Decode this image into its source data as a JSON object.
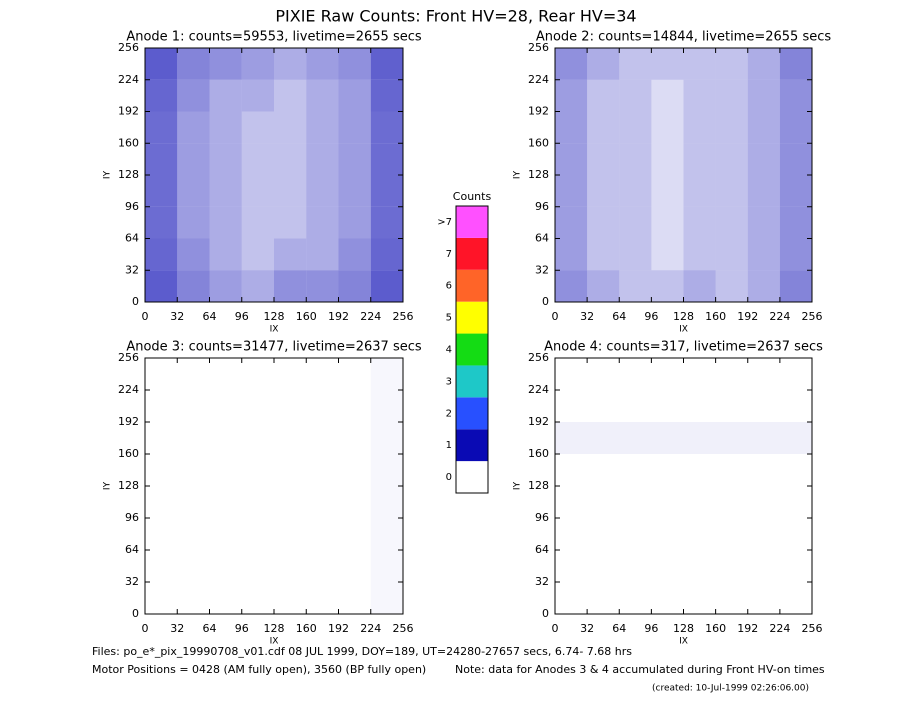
{
  "title": "PIXIE Raw Counts:  Front HV=28, Rear HV=34",
  "chart_data": [
    {
      "type": "heatmap",
      "title": "Anode 1: counts=59553, livetime=2655 secs",
      "xlabel": "IX",
      "ylabel": "IY",
      "xlim": [
        0,
        256
      ],
      "ylim": [
        0,
        256
      ],
      "xticks": [
        0,
        32,
        64,
        96,
        128,
        160,
        192,
        224,
        256
      ],
      "yticks": [
        0,
        32,
        64,
        96,
        128,
        160,
        192,
        224,
        256
      ],
      "xbins": [
        0,
        32,
        64,
        96,
        128,
        160,
        192,
        224,
        256
      ],
      "ybins": [
        0,
        32,
        64,
        96,
        128,
        160,
        192,
        224,
        256
      ],
      "values": [
        [
          1.2,
          0.6,
          0.4,
          0.3,
          0.5,
          0.5,
          0.6,
          1.2
        ],
        [
          1.0,
          0.5,
          0.3,
          0.2,
          0.3,
          0.3,
          0.5,
          1.0
        ],
        [
          0.9,
          0.4,
          0.3,
          0.2,
          0.2,
          0.3,
          0.4,
          0.9
        ],
        [
          0.9,
          0.4,
          0.3,
          0.2,
          0.2,
          0.3,
          0.4,
          0.9
        ],
        [
          0.9,
          0.4,
          0.3,
          0.2,
          0.2,
          0.3,
          0.4,
          0.9
        ],
        [
          0.9,
          0.4,
          0.3,
          0.2,
          0.2,
          0.3,
          0.4,
          0.9
        ],
        [
          1.0,
          0.5,
          0.3,
          0.3,
          0.2,
          0.3,
          0.4,
          1.0
        ],
        [
          1.2,
          0.6,
          0.5,
          0.4,
          0.3,
          0.4,
          0.5,
          1.1
        ]
      ]
    },
    {
      "type": "heatmap",
      "title": "Anode 2: counts=14844, livetime=2655 secs",
      "xlabel": "IX",
      "ylabel": "IY",
      "xlim": [
        0,
        256
      ],
      "ylim": [
        0,
        256
      ],
      "xticks": [
        0,
        32,
        64,
        96,
        128,
        160,
        192,
        224,
        256
      ],
      "yticks": [
        0,
        32,
        64,
        96,
        128,
        160,
        192,
        224,
        256
      ],
      "xbins": [
        0,
        32,
        64,
        96,
        128,
        160,
        192,
        224,
        256
      ],
      "ybins": [
        0,
        32,
        64,
        96,
        128,
        160,
        192,
        224,
        256
      ],
      "values": [
        [
          0.5,
          0.3,
          0.2,
          0.2,
          0.3,
          0.2,
          0.3,
          0.6
        ],
        [
          0.4,
          0.2,
          0.2,
          0.1,
          0.2,
          0.2,
          0.3,
          0.5
        ],
        [
          0.4,
          0.2,
          0.2,
          0.1,
          0.2,
          0.2,
          0.3,
          0.5
        ],
        [
          0.4,
          0.2,
          0.2,
          0.1,
          0.2,
          0.2,
          0.3,
          0.5
        ],
        [
          0.4,
          0.2,
          0.2,
          0.1,
          0.2,
          0.2,
          0.3,
          0.5
        ],
        [
          0.4,
          0.2,
          0.2,
          0.1,
          0.2,
          0.2,
          0.3,
          0.5
        ],
        [
          0.4,
          0.2,
          0.2,
          0.1,
          0.2,
          0.2,
          0.3,
          0.5
        ],
        [
          0.5,
          0.3,
          0.2,
          0.2,
          0.2,
          0.2,
          0.3,
          0.6
        ]
      ]
    },
    {
      "type": "heatmap",
      "title": "Anode 3: counts=31477, livetime=2637 secs",
      "xlabel": "IX",
      "ylabel": "IY",
      "xlim": [
        0,
        256
      ],
      "ylim": [
        0,
        256
      ],
      "xticks": [
        0,
        32,
        64,
        96,
        128,
        160,
        192,
        224,
        256
      ],
      "yticks": [
        0,
        32,
        64,
        96,
        128,
        160,
        192,
        224,
        256
      ],
      "xbins": [
        0,
        32,
        64,
        96,
        128,
        160,
        192,
        224,
        256
      ],
      "ybins": [
        0,
        32,
        64,
        96,
        128,
        160,
        192,
        224,
        256
      ],
      "values": [
        [
          0,
          0,
          0,
          0,
          0,
          0,
          0,
          0.02
        ],
        [
          0,
          0,
          0,
          0,
          0,
          0,
          0,
          0.02
        ],
        [
          0,
          0,
          0,
          0,
          0,
          0,
          0,
          0.02
        ],
        [
          0,
          0,
          0,
          0,
          0,
          0,
          0,
          0.02
        ],
        [
          0,
          0,
          0,
          0,
          0,
          0,
          0,
          0.02
        ],
        [
          0,
          0,
          0,
          0,
          0,
          0,
          0,
          0.02
        ],
        [
          0,
          0,
          0,
          0,
          0,
          0,
          0,
          0.02
        ],
        [
          0,
          0,
          0,
          0,
          0,
          0,
          0,
          0.02
        ]
      ]
    },
    {
      "type": "heatmap",
      "title": "Anode 4: counts=317, livetime=2637 secs",
      "xlabel": "IX",
      "ylabel": "IY",
      "xlim": [
        0,
        256
      ],
      "ylim": [
        0,
        256
      ],
      "xticks": [
        0,
        32,
        64,
        96,
        128,
        160,
        192,
        224,
        256
      ],
      "yticks": [
        0,
        32,
        64,
        96,
        128,
        160,
        192,
        224,
        256
      ],
      "xbins": [
        0,
        32,
        64,
        96,
        128,
        160,
        192,
        224,
        256
      ],
      "ybins": [
        0,
        32,
        64,
        96,
        128,
        160,
        192,
        224,
        256
      ],
      "values": [
        [
          0,
          0,
          0,
          0,
          0,
          0,
          0,
          0
        ],
        [
          0,
          0,
          0,
          0,
          0,
          0,
          0,
          0
        ],
        [
          0,
          0,
          0,
          0,
          0,
          0,
          0,
          0
        ],
        [
          0,
          0,
          0,
          0,
          0,
          0,
          0,
          0
        ],
        [
          0,
          0,
          0,
          0,
          0,
          0,
          0,
          0
        ],
        [
          0.04,
          0.04,
          0.04,
          0.04,
          0.04,
          0.04,
          0.04,
          0.04
        ],
        [
          0,
          0,
          0,
          0,
          0,
          0,
          0,
          0
        ],
        [
          0,
          0,
          0,
          0,
          0,
          0,
          0,
          0
        ]
      ]
    }
  ],
  "colorbar": {
    "title": "Counts",
    "labels": [
      "0",
      "1",
      "2",
      "3",
      "4",
      "5",
      "6",
      "7",
      ">7"
    ],
    "colors": [
      "#ffffff",
      "#0a0ab4",
      "#2850ff",
      "#1ec8c8",
      "#14dc14",
      "#ffff00",
      "#ff6428",
      "#ff1428",
      "#ff50ff"
    ]
  },
  "footer": {
    "files": "Files: po_e*_pix_19990708_v01.cdf    08 JUL 1999, DOY=189, UT=24280-27657 secs,  6.74- 7.68 hrs",
    "motor": "Motor Positions = 0428 (AM fully open), 3560 (BP fully open)",
    "note": "Note: data for Anodes 3 & 4 accumulated during Front HV-on times",
    "created": "(created: 10-Jul-1999 02:26:06.00)"
  }
}
